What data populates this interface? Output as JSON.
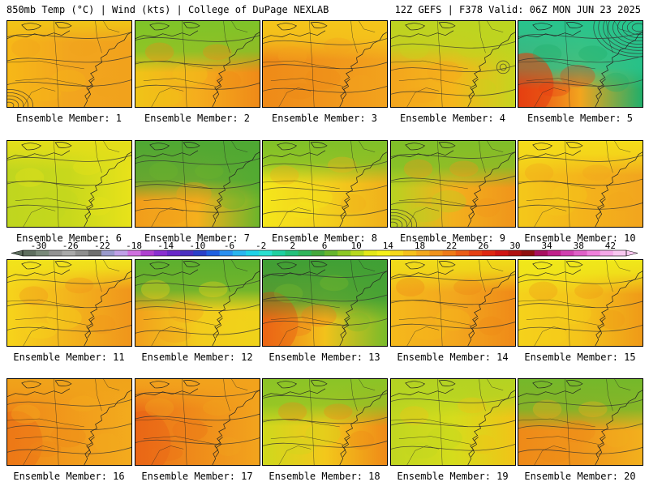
{
  "header": {
    "left": "850mb Temp (°C) | Wind (kts) | College of DuPage NEXLAB",
    "right": "12Z GEFS | F378 Valid: 06Z MON JUN 23 2025"
  },
  "members": [
    {
      "label": "Ensemble Member: 1",
      "base": "#f2a51e",
      "west": "#f7b817",
      "east": "#f1a21c",
      "north": "#f0c417",
      "nlevel": 0.0,
      "swhot": 0.0
    },
    {
      "label": "Ensemble Member: 2",
      "base": "#f5ad1d",
      "west": "#f0c417",
      "east": "#ef8a18",
      "north": "#7ec428",
      "nlevel": 0.35,
      "swhot": 0.0
    },
    {
      "label": "Ensemble Member: 3",
      "base": "#f0951b",
      "west": "#ef8a18",
      "east": "#f3a31d",
      "north": "#f4c61b",
      "nlevel": 0.2,
      "swhot": 0.0
    },
    {
      "label": "Ensemble Member: 4",
      "base": "#f5b61b",
      "west": "#f3a51d",
      "east": "#c6d41e",
      "north": "#bcd520",
      "nlevel": 0.3,
      "swhot": 0.0
    },
    {
      "label": "Ensemble Member: 5",
      "base": "#f2a51e",
      "west": "#e84015",
      "east": "#1fae6a",
      "north": "#27c48d",
      "nlevel": 0.55,
      "swhot": 0.6
    },
    {
      "label": "Ensemble Member: 6",
      "base": "#c8d81c",
      "west": "#bfd61f",
      "east": "#e8e21a",
      "north": "#e3de1a",
      "nlevel": 0.1,
      "swhot": 0.0
    },
    {
      "label": "Ensemble Member: 7",
      "base": "#f5b01d",
      "west": "#f19d1b",
      "east": "#6cb52b",
      "north": "#4ea833",
      "nlevel": 0.45,
      "swhot": 0.0
    },
    {
      "label": "Ensemble Member: 8",
      "base": "#f3d01d",
      "west": "#f4e61b",
      "east": "#f0b01b",
      "north": "#7fc028",
      "nlevel": 0.25,
      "swhot": 0.0
    },
    {
      "label": "Ensemble Member: 9",
      "base": "#f2b01d",
      "west": "#b7d221",
      "east": "#f0951b",
      "north": "#7fbf28",
      "nlevel": 0.3,
      "swhot": 0.0
    },
    {
      "label": "Ensemble Member: 10",
      "base": "#f4b41b",
      "west": "#f4c81a",
      "east": "#f2a51e",
      "north": "#f4dc1a",
      "nlevel": 0.15,
      "swhot": 0.0
    },
    {
      "label": "Ensemble Member: 11",
      "base": "#f3b41d",
      "west": "#f6d41b",
      "east": "#f0951b",
      "north": "#f1e31b",
      "nlevel": 0.1,
      "swhot": 0.0
    },
    {
      "label": "Ensemble Member: 12",
      "base": "#f3cc1c",
      "west": "#f2a01c",
      "east": "#f0d31a",
      "north": "#5cb02e",
      "nlevel": 0.35,
      "swhot": 0.0
    },
    {
      "label": "Ensemble Member: 13",
      "base": "#f2c21b",
      "west": "#ef7a1a",
      "east": "#79bb2a",
      "north": "#3f9f35",
      "nlevel": 0.45,
      "swhot": 0.35
    },
    {
      "label": "Ensemble Member: 14",
      "base": "#f3a81e",
      "west": "#f5b91b",
      "east": "#ef8a18",
      "north": "#f0dc1a",
      "nlevel": 0.12,
      "swhot": 0.0
    },
    {
      "label": "Ensemble Member: 15",
      "base": "#f4c41b",
      "west": "#f5d21b",
      "east": "#ef9a18",
      "north": "#f0e81a",
      "nlevel": 0.15,
      "swhot": 0.0
    },
    {
      "label": "Ensemble Member: 16",
      "base": "#f19a1b",
      "west": "#ef8618",
      "east": "#f3ab1d",
      "north": "#f0a31a",
      "nlevel": 0.1,
      "swhot": 0.2
    },
    {
      "label": "Ensemble Member: 17",
      "base": "#ef8c1a",
      "west": "#ec7018",
      "east": "#f2a41d",
      "north": "#f2a31c",
      "nlevel": 0.1,
      "swhot": 0.2
    },
    {
      "label": "Ensemble Member: 18",
      "base": "#f3c81b",
      "west": "#cfd81d",
      "east": "#ef8a18",
      "north": "#8bc426",
      "nlevel": 0.3,
      "swhot": 0.0
    },
    {
      "label": "Ensemble Member: 19",
      "base": "#d5dc1c",
      "west": "#c1d620",
      "east": "#f0c417",
      "north": "#b4d322",
      "nlevel": 0.2,
      "swhot": 0.0
    },
    {
      "label": "Ensemble Member: 20",
      "base": "#f0951b",
      "west": "#ef8a18",
      "east": "#f2b01d",
      "north": "#74b82a",
      "nlevel": 0.35,
      "swhot": 0.0
    }
  ],
  "colorbar": {
    "ticks": [
      "-30",
      "-26",
      "-22",
      "-18",
      "-14",
      "-10",
      "-6",
      "-2",
      "2",
      "6",
      "10",
      "14",
      "18",
      "22",
      "26",
      "30",
      "34",
      "38",
      "42"
    ],
    "colors": [
      "#5f6f5f",
      "#798979",
      "#939393",
      "#a9a9a9",
      "#8e8e8e",
      "#6f6f6f",
      "#9999cc",
      "#c0a0e8",
      "#d070e0",
      "#b040d0",
      "#8a2fd0",
      "#6a28c8",
      "#4b2fc0",
      "#2a3fc8",
      "#1f5fe0",
      "#2a8ff0",
      "#29b5ef",
      "#1fd2e8",
      "#2ae0d0",
      "#1fd0a0",
      "#23c07a",
      "#2fb55a",
      "#44a83c",
      "#66b52e",
      "#8cc824",
      "#b7d81e",
      "#e4e818",
      "#f5f01a",
      "#f6d81b",
      "#f5c01b",
      "#f3a81d",
      "#f0921b",
      "#ee7a18",
      "#ea5c16",
      "#e44014",
      "#de2712",
      "#cf1414",
      "#b01010",
      "#8f1010",
      "#a81060",
      "#c0208a",
      "#d040b0",
      "#e060c8",
      "#f080dc",
      "#f4a8e8",
      "#f8c8f0"
    ]
  }
}
